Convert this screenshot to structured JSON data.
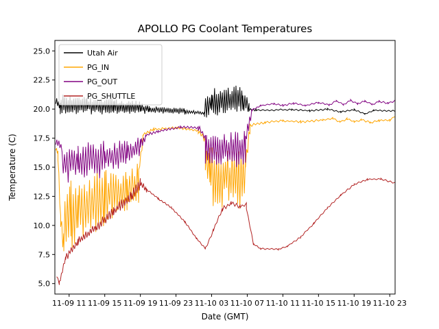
{
  "figure": {
    "background": "#ffffff"
  },
  "chart_data": {
    "type": "line",
    "title": "APOLLO PG Coolant Temperatures",
    "xlabel": "Date (GMT)",
    "ylabel": "Temperature (C)",
    "x_unit": "hours",
    "xlim": [
      9.4,
      47.6
    ],
    "ylim": [
      4.1,
      25.9
    ],
    "grid": false,
    "legend_position": "upper-left",
    "xticks": [
      {
        "x": 11,
        "label": "11-09 11"
      },
      {
        "x": 15,
        "label": "11-09 15"
      },
      {
        "x": 19,
        "label": "11-09 19"
      },
      {
        "x": 23,
        "label": "11-09 23"
      },
      {
        "x": 27,
        "label": "11-10 03"
      },
      {
        "x": 31,
        "label": "11-10 07"
      },
      {
        "x": 35,
        "label": "11-10 11"
      },
      {
        "x": 39,
        "label": "11-10 15"
      },
      {
        "x": 43,
        "label": "11-10 19"
      },
      {
        "x": 47,
        "label": "11-10 23"
      }
    ],
    "yticks": [
      {
        "y": 5.0,
        "label": "5.0"
      },
      {
        "y": 7.5,
        "label": "7.5"
      },
      {
        "y": 10.0,
        "label": "10.0"
      },
      {
        "y": 12.5,
        "label": "12.5"
      },
      {
        "y": 15.0,
        "label": "15.0"
      },
      {
        "y": 17.5,
        "label": "17.5"
      },
      {
        "y": 20.0,
        "label": "20.0"
      },
      {
        "y": 22.5,
        "label": "22.5"
      },
      {
        "y": 25.0,
        "label": "25.0"
      }
    ],
    "segment_keys": [
      "x0",
      "x1",
      "y0",
      "y1",
      "noise_amp",
      "points_per_hour"
    ],
    "series": [
      {
        "name": "Utah Air",
        "color": "#000000",
        "segments": [
          [
            9.5,
            10.0,
            20.6,
            20.3,
            0.35,
            10
          ],
          [
            10.0,
            13.0,
            20.35,
            20.35,
            0.8,
            10
          ],
          [
            13.0,
            16.0,
            20.3,
            20.25,
            0.7,
            10
          ],
          [
            16.0,
            19.0,
            20.25,
            20.15,
            0.6,
            10
          ],
          [
            19.0,
            20.0,
            20.1,
            19.95,
            0.4,
            10
          ],
          [
            20.0,
            24.0,
            19.95,
            19.85,
            0.28,
            9
          ],
          [
            24.0,
            26.2,
            19.8,
            19.65,
            0.15,
            8
          ],
          [
            26.2,
            27.0,
            20.1,
            20.6,
            0.9,
            9
          ],
          [
            27.0,
            30.5,
            20.7,
            20.8,
            1.15,
            9
          ],
          [
            30.5,
            31.2,
            20.6,
            20.2,
            0.7,
            9
          ],
          [
            31.2,
            32.0,
            19.95,
            19.9,
            0.12,
            6
          ],
          [
            32.0,
            36.0,
            19.9,
            19.95,
            0.07,
            4
          ],
          [
            36.0,
            38.0,
            19.95,
            19.85,
            0.07,
            4
          ],
          [
            38.0,
            40.0,
            19.85,
            20.0,
            0.07,
            4
          ],
          [
            40.0,
            41.5,
            20.0,
            19.75,
            0.07,
            4
          ],
          [
            41.5,
            43.0,
            19.75,
            19.95,
            0.07,
            4
          ],
          [
            43.0,
            44.2,
            19.95,
            19.6,
            0.07,
            4
          ],
          [
            44.2,
            45.2,
            19.6,
            19.9,
            0.07,
            4
          ],
          [
            45.2,
            47.6,
            19.9,
            19.85,
            0.07,
            4
          ]
        ]
      },
      {
        "name": "PG_IN",
        "color": "#ffa500",
        "segments": [
          [
            9.5,
            9.75,
            16.6,
            16.2,
            0.25,
            10
          ],
          [
            9.75,
            10.05,
            16.0,
            10.5,
            0.6,
            10
          ],
          [
            10.05,
            10.4,
            10.5,
            8.3,
            0.9,
            10
          ],
          [
            10.4,
            11.2,
            10.0,
            10.8,
            3.4,
            7
          ],
          [
            11.2,
            12.0,
            10.8,
            11.3,
            3.2,
            7
          ],
          [
            12.0,
            15.0,
            11.6,
            12.4,
            2.8,
            7
          ],
          [
            15.0,
            17.5,
            12.4,
            13.0,
            2.3,
            7
          ],
          [
            17.5,
            18.8,
            13.0,
            13.9,
            1.7,
            7
          ],
          [
            18.8,
            19.3,
            14.5,
            17.6,
            0.5,
            8
          ],
          [
            19.3,
            20.5,
            17.8,
            18.25,
            0.15,
            6
          ],
          [
            20.5,
            23.0,
            18.25,
            18.4,
            0.1,
            5
          ],
          [
            23.0,
            25.5,
            18.4,
            18.15,
            0.1,
            5
          ],
          [
            25.5,
            26.3,
            18.15,
            17.3,
            0.25,
            6
          ],
          [
            26.3,
            26.8,
            16.0,
            14.5,
            1.5,
            8
          ],
          [
            26.8,
            30.8,
            14.2,
            13.8,
            2.4,
            8
          ],
          [
            30.8,
            31.3,
            15.5,
            18.3,
            0.6,
            8
          ],
          [
            31.3,
            33.0,
            18.6,
            18.85,
            0.12,
            5
          ],
          [
            33.0,
            35.0,
            18.85,
            19.0,
            0.09,
            4
          ],
          [
            35.0,
            37.0,
            19.0,
            18.9,
            0.09,
            4
          ],
          [
            37.0,
            39.5,
            18.9,
            19.05,
            0.09,
            4
          ],
          [
            39.5,
            40.6,
            19.05,
            19.2,
            0.09,
            4
          ],
          [
            40.6,
            41.4,
            19.2,
            18.9,
            0.09,
            4
          ],
          [
            41.4,
            42.2,
            18.9,
            19.15,
            0.09,
            4
          ],
          [
            42.2,
            43.0,
            19.15,
            18.9,
            0.09,
            4
          ],
          [
            43.0,
            43.8,
            18.9,
            19.1,
            0.09,
            4
          ],
          [
            43.8,
            44.8,
            19.1,
            18.85,
            0.09,
            4
          ],
          [
            44.8,
            45.8,
            18.85,
            19.0,
            0.09,
            4
          ],
          [
            45.8,
            47.0,
            19.0,
            19.05,
            0.09,
            4
          ],
          [
            47.0,
            47.6,
            19.05,
            19.4,
            0.09,
            4
          ]
        ]
      },
      {
        "name": "PG_OUT",
        "color": "#800080",
        "segments": [
          [
            9.5,
            10.2,
            17.3,
            16.6,
            0.4,
            9
          ],
          [
            10.2,
            12.0,
            15.4,
            15.4,
            1.8,
            7
          ],
          [
            12.0,
            15.0,
            15.4,
            15.8,
            1.5,
            7
          ],
          [
            15.0,
            17.5,
            15.8,
            16.3,
            1.1,
            7
          ],
          [
            17.5,
            19.0,
            16.3,
            16.8,
            0.8,
            7
          ],
          [
            19.0,
            19.6,
            16.9,
            17.6,
            0.4,
            8
          ],
          [
            19.6,
            21.0,
            17.75,
            18.1,
            0.12,
            6
          ],
          [
            21.0,
            23.5,
            18.1,
            18.45,
            0.1,
            5
          ],
          [
            23.5,
            25.5,
            18.45,
            18.4,
            0.1,
            5
          ],
          [
            25.5,
            26.3,
            18.4,
            17.6,
            0.3,
            6
          ],
          [
            26.3,
            30.8,
            16.6,
            16.6,
            1.5,
            8
          ],
          [
            30.8,
            31.5,
            17.5,
            19.7,
            0.5,
            8
          ],
          [
            31.5,
            32.5,
            19.9,
            20.3,
            0.1,
            5
          ],
          [
            32.5,
            34.0,
            20.3,
            20.45,
            0.08,
            4
          ],
          [
            34.0,
            35.0,
            20.45,
            20.3,
            0.08,
            4
          ],
          [
            35.0,
            36.2,
            20.3,
            20.5,
            0.08,
            4
          ],
          [
            36.2,
            37.5,
            20.5,
            20.3,
            0.08,
            4
          ],
          [
            37.5,
            39.0,
            20.3,
            20.55,
            0.08,
            4
          ],
          [
            39.0,
            40.2,
            20.55,
            20.35,
            0.08,
            4
          ],
          [
            40.2,
            41.0,
            20.35,
            20.7,
            0.08,
            4
          ],
          [
            41.0,
            41.8,
            20.7,
            20.4,
            0.08,
            4
          ],
          [
            41.8,
            42.6,
            20.4,
            20.75,
            0.08,
            4
          ],
          [
            42.6,
            43.4,
            20.75,
            20.45,
            0.08,
            4
          ],
          [
            43.4,
            44.2,
            20.45,
            20.7,
            0.08,
            4
          ],
          [
            44.2,
            45.0,
            20.7,
            20.4,
            0.08,
            4
          ],
          [
            45.0,
            45.8,
            20.4,
            20.65,
            0.08,
            4
          ],
          [
            45.8,
            46.8,
            20.65,
            20.5,
            0.08,
            4
          ],
          [
            46.8,
            47.6,
            20.5,
            20.7,
            0.08,
            4
          ]
        ]
      },
      {
        "name": "PG_SHUTTLE",
        "color": "#b22222",
        "segments": [
          [
            9.6,
            9.9,
            5.7,
            5.0,
            0.15,
            8
          ],
          [
            9.9,
            10.6,
            5.0,
            7.2,
            0.25,
            8
          ],
          [
            10.6,
            12.0,
            7.2,
            8.6,
            0.3,
            8
          ],
          [
            12.0,
            14.0,
            8.6,
            9.8,
            0.35,
            8
          ],
          [
            14.0,
            16.0,
            9.8,
            11.2,
            0.4,
            8
          ],
          [
            16.0,
            18.0,
            11.2,
            12.6,
            0.45,
            8
          ],
          [
            18.0,
            19.0,
            12.6,
            13.6,
            0.5,
            8
          ],
          [
            19.0,
            19.7,
            13.6,
            13.1,
            0.3,
            8
          ],
          [
            19.7,
            21.0,
            13.1,
            12.3,
            0.08,
            5
          ],
          [
            21.0,
            22.5,
            12.3,
            11.5,
            0.08,
            5
          ],
          [
            22.5,
            24.0,
            11.5,
            10.3,
            0.08,
            5
          ],
          [
            24.0,
            25.3,
            10.3,
            8.9,
            0.08,
            5
          ],
          [
            25.3,
            26.3,
            8.9,
            8.0,
            0.08,
            5
          ],
          [
            26.3,
            27.2,
            8.0,
            9.6,
            0.12,
            5
          ],
          [
            27.2,
            28.2,
            9.6,
            11.4,
            0.12,
            5
          ],
          [
            28.2,
            29.2,
            11.4,
            11.9,
            0.18,
            5
          ],
          [
            29.2,
            30.2,
            11.9,
            11.6,
            0.18,
            5
          ],
          [
            30.2,
            30.9,
            11.6,
            11.8,
            0.15,
            5
          ],
          [
            30.9,
            31.7,
            11.5,
            8.4,
            0.1,
            5
          ],
          [
            31.7,
            32.5,
            8.4,
            8.0,
            0.08,
            5
          ],
          [
            32.5,
            34.5,
            8.0,
            7.95,
            0.07,
            4
          ],
          [
            34.5,
            35.5,
            7.95,
            8.2,
            0.07,
            4
          ],
          [
            35.5,
            37.0,
            8.2,
            9.0,
            0.08,
            4
          ],
          [
            37.0,
            38.5,
            9.0,
            10.2,
            0.08,
            4
          ],
          [
            38.5,
            40.0,
            10.2,
            11.5,
            0.08,
            4
          ],
          [
            40.0,
            41.5,
            11.5,
            12.6,
            0.08,
            4
          ],
          [
            41.5,
            43.0,
            12.6,
            13.5,
            0.08,
            4
          ],
          [
            43.0,
            44.5,
            13.5,
            13.95,
            0.08,
            4
          ],
          [
            44.5,
            46.0,
            13.95,
            14.0,
            0.08,
            4
          ],
          [
            46.0,
            47.6,
            14.0,
            13.65,
            0.08,
            4
          ]
        ]
      }
    ]
  }
}
